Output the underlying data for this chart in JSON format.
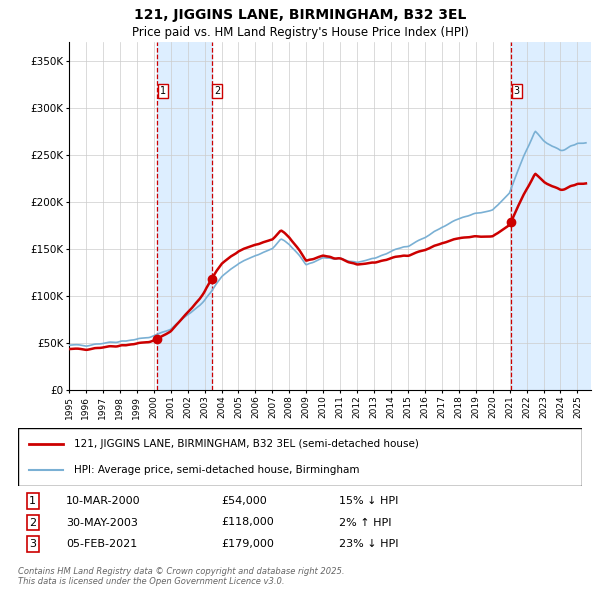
{
  "title": "121, JIGGINS LANE, BIRMINGHAM, B32 3EL",
  "subtitle": "Price paid vs. HM Land Registry's House Price Index (HPI)",
  "ylabel_ticks": [
    "£0",
    "£50K",
    "£100K",
    "£150K",
    "£200K",
    "£250K",
    "£300K",
    "£350K"
  ],
  "ytick_values": [
    0,
    50000,
    100000,
    150000,
    200000,
    250000,
    300000,
    350000
  ],
  "ylim": [
    0,
    370000
  ],
  "xlim_start": 1995.0,
  "xlim_end": 2025.8,
  "xtick_years": [
    1995,
    1996,
    1997,
    1998,
    1999,
    2000,
    2001,
    2002,
    2003,
    2004,
    2005,
    2006,
    2007,
    2008,
    2009,
    2010,
    2011,
    2012,
    2013,
    2014,
    2015,
    2016,
    2017,
    2018,
    2019,
    2020,
    2021,
    2022,
    2023,
    2024,
    2025
  ],
  "sale_markers": [
    {
      "label": "1",
      "date_num": 2000.19,
      "price": 54000,
      "color": "#cc0000"
    },
    {
      "label": "2",
      "date_num": 2003.41,
      "price": 118000,
      "color": "#cc0000"
    },
    {
      "label": "3",
      "date_num": 2021.09,
      "price": 179000,
      "color": "#cc0000"
    }
  ],
  "vline_color": "#cc0000",
  "shade_color": "#ddeeff",
  "hpi_color": "#7ab0d4",
  "sale_line_color": "#cc0000",
  "bg_color": "#ffffff",
  "grid_color": "#cccccc",
  "legend_items": [
    {
      "label": "121, JIGGINS LANE, BIRMINGHAM, B32 3EL (semi-detached house)",
      "color": "#cc0000",
      "lw": 2
    },
    {
      "label": "HPI: Average price, semi-detached house, Birmingham",
      "color": "#7ab0d4",
      "lw": 1.5
    }
  ],
  "table_rows": [
    {
      "num": "1",
      "date": "10-MAR-2000",
      "price": "£54,000",
      "pct": "15% ↓ HPI"
    },
    {
      "num": "2",
      "date": "30-MAY-2003",
      "price": "£118,000",
      "pct": "2% ↑ HPI"
    },
    {
      "num": "3",
      "date": "05-FEB-2021",
      "price": "£179,000",
      "pct": "23% ↓ HPI"
    }
  ],
  "footnote": "Contains HM Land Registry data © Crown copyright and database right 2025.\nThis data is licensed under the Open Government Licence v3.0."
}
